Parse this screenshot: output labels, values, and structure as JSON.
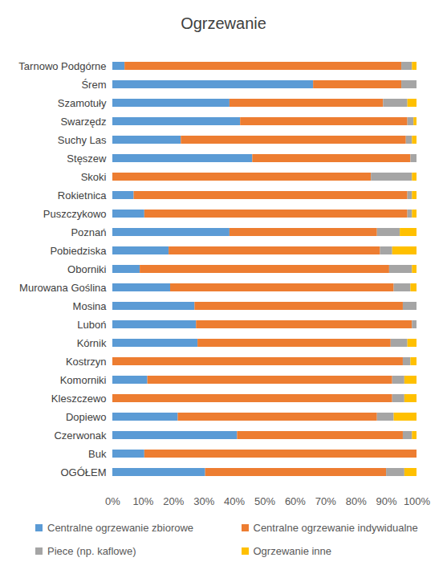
{
  "chart_data": {
    "type": "bar",
    "title": "Ogrzewanie",
    "orientation": "horizontal",
    "stacked": true,
    "grid": false,
    "legend": "bottom",
    "categories": [
      "Tarnowo Podgórne",
      "Śrem",
      "Szamotuły",
      "Swarzędz",
      "Suchy Las",
      "Stęszew",
      "Skoki",
      "Rokietnica",
      "Puszczykowo",
      "Poznań",
      "Pobiedziska",
      "Oborniki",
      "Murowana Goślina",
      "Mosina",
      "Luboń",
      "Kórnik",
      "Kostrzyn",
      "Komorniki",
      "Kleszczewo",
      "Dopiewo",
      "Czerwonak",
      "Buk",
      "OGÓŁEM"
    ],
    "series": [
      {
        "name": "Centralne ogrzewanie zbiorowe",
        "color": "#5b9bd5",
        "values": [
          4,
          66,
          38.5,
          42,
          22.5,
          46,
          0,
          7,
          10.5,
          38.5,
          18.5,
          9,
          19,
          27,
          27.5,
          28,
          0,
          11.5,
          0,
          21.5,
          41,
          10.5,
          30.5
        ]
      },
      {
        "name": "Centralne ogrzewanie indywidualne",
        "color": "#ed7d31",
        "values": [
          91,
          29,
          50.5,
          55,
          74,
          52,
          85,
          90,
          86.5,
          48.5,
          69.5,
          82,
          73.5,
          68.5,
          71,
          63.5,
          95.5,
          80.5,
          92,
          65.5,
          54.5,
          89.5,
          59.5
        ]
      },
      {
        "name": "Piece (np. kaflowe)",
        "color": "#a5a5a5",
        "values": [
          3.5,
          5,
          8,
          2,
          2,
          2,
          13.5,
          1.5,
          1.5,
          7.5,
          4,
          7.5,
          5.5,
          4.5,
          1.5,
          5.5,
          2.5,
          4,
          4,
          5.5,
          3,
          0,
          6
        ]
      },
      {
        "name": "Ogrzewanie inne",
        "color": "#ffc000",
        "values": [
          1.5,
          0,
          3,
          1,
          1.5,
          0,
          1.5,
          1.5,
          1.5,
          5.5,
          8,
          1.5,
          2,
          0,
          0,
          3,
          2,
          4,
          4,
          7.5,
          1.5,
          0,
          4
        ]
      }
    ],
    "xlim": [
      0,
      100
    ],
    "xticks": [
      {
        "value": 0,
        "label": "0%"
      },
      {
        "value": 10,
        "label": "10%"
      },
      {
        "value": 20,
        "label": "20%"
      },
      {
        "value": 30,
        "label": "30%"
      },
      {
        "value": 40,
        "label": "40%"
      },
      {
        "value": 50,
        "label": "50%"
      },
      {
        "value": 60,
        "label": "60%"
      },
      {
        "value": 70,
        "label": "70%"
      },
      {
        "value": 80,
        "label": "80%"
      },
      {
        "value": 90,
        "label": "90%"
      },
      {
        "value": 100,
        "label": "100%"
      }
    ]
  }
}
